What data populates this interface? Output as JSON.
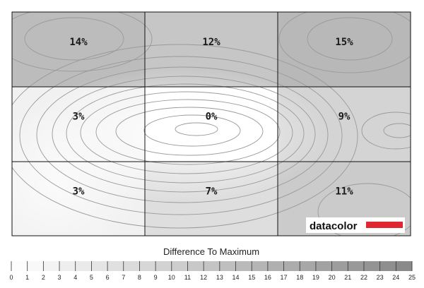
{
  "chart_data": {
    "type": "heatmap",
    "title": "",
    "rows": 3,
    "cols": 3,
    "values": [
      [
        14,
        12,
        15
      ],
      [
        3,
        0,
        9
      ],
      [
        3,
        7,
        11
      ]
    ],
    "labels": [
      [
        "14%",
        "12%",
        "15%"
      ],
      [
        "3%",
        "0%",
        "9%"
      ],
      [
        "3%",
        "7%",
        "11%"
      ]
    ],
    "colorscale": {
      "min": 0,
      "max": 25,
      "low_color": "#ffffff",
      "high_color": "#888888"
    },
    "legend": {
      "title": "Difference To Maximum",
      "ticks": [
        "0",
        "1",
        "2",
        "3",
        "4",
        "5",
        "6",
        "7",
        "8",
        "9",
        "10",
        "11",
        "12",
        "13",
        "14",
        "15",
        "16",
        "17",
        "18",
        "19",
        "20",
        "21",
        "22",
        "23",
        "24",
        "25"
      ],
      "position": "bottom"
    },
    "contour_lines": true,
    "grid": true
  },
  "branding": {
    "logo_text": "datacolor",
    "bar_color": "#e0262f"
  }
}
